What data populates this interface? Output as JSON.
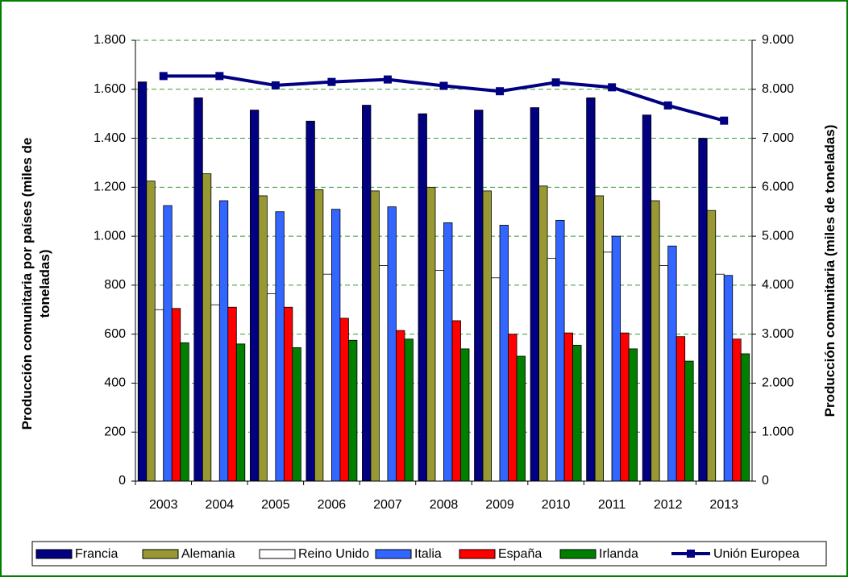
{
  "chart_data": {
    "type": "bar",
    "ylabel": "Producción comunitaria por países (miles de toneladas)",
    "y2label": "Producción comunitaria (miles de toneladas)",
    "categories": [
      "2003",
      "2004",
      "2005",
      "2006",
      "2007",
      "2008",
      "2009",
      "2010",
      "2011",
      "2012",
      "2013"
    ],
    "series": [
      {
        "name": "Francia",
        "color": "#000080",
        "values": [
          1630,
          1565,
          1515,
          1470,
          1535,
          1500,
          1515,
          1525,
          1565,
          1495,
          1400
        ]
      },
      {
        "name": "Alemania",
        "color": "#999933",
        "values": [
          1225,
          1255,
          1165,
          1190,
          1185,
          1200,
          1185,
          1205,
          1165,
          1145,
          1105
        ]
      },
      {
        "name": "Reino Unido",
        "color": "#ffffff",
        "values": [
          700,
          720,
          765,
          845,
          880,
          860,
          830,
          910,
          935,
          880,
          845
        ]
      },
      {
        "name": "Italia",
        "color": "#3366ff",
        "values": [
          1125,
          1145,
          1100,
          1110,
          1120,
          1055,
          1045,
          1065,
          1000,
          960,
          840
        ]
      },
      {
        "name": "España",
        "color": "#ff0000",
        "values": [
          705,
          710,
          710,
          665,
          615,
          655,
          600,
          605,
          605,
          590,
          580
        ]
      },
      {
        "name": "Irlanda",
        "color": "#008000",
        "values": [
          565,
          560,
          545,
          575,
          580,
          540,
          510,
          555,
          540,
          490,
          520
        ]
      },
      {
        "name": "Unión Europea",
        "color": "#000080",
        "type": "line",
        "axis": "y2",
        "values": [
          8270,
          8270,
          8080,
          8150,
          8200,
          8070,
          7960,
          8140,
          8040,
          7670,
          7360
        ]
      }
    ],
    "ylim": [
      0,
      1800
    ],
    "yticks": [
      0,
      200,
      400,
      600,
      800,
      {
        "value": 1000,
        "label": "1.000"
      },
      {
        "value": 1200,
        "label": "1.200"
      },
      {
        "value": 1400,
        "label": "1.400"
      },
      {
        "value": 1600,
        "label": "1.600"
      },
      {
        "value": 1800,
        "label": "1.800"
      }
    ],
    "y2lim": [
      0,
      9000
    ],
    "y2ticks": [
      0,
      {
        "value": 1000,
        "label": "1.000"
      },
      {
        "value": 2000,
        "label": "2.000"
      },
      {
        "value": 3000,
        "label": "3.000"
      },
      {
        "value": 4000,
        "label": "4.000"
      },
      {
        "value": 5000,
        "label": "5.000"
      },
      {
        "value": 6000,
        "label": "6.000"
      },
      {
        "value": 7000,
        "label": "7.000"
      },
      {
        "value": 8000,
        "label": "8.000"
      },
      {
        "value": 9000,
        "label": "9.000"
      }
    ],
    "grid": true,
    "legend": "bottom"
  }
}
